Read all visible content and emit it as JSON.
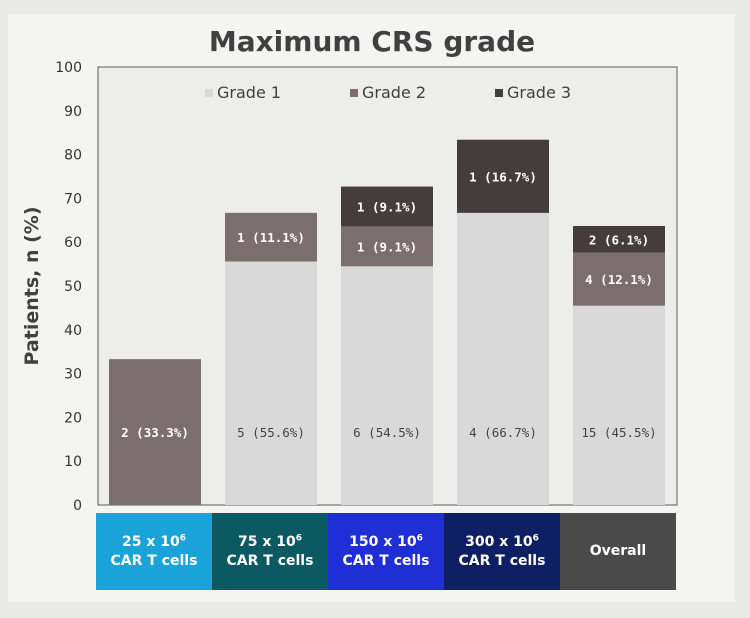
{
  "chart_data": {
    "type": "bar",
    "stacked": true,
    "title": "Maximum CRS grade",
    "ylabel": "Patients, n (%)",
    "xlabel": "",
    "ylim": [
      0,
      100
    ],
    "yticks": [
      0,
      10,
      20,
      30,
      40,
      50,
      60,
      70,
      80,
      90,
      100
    ],
    "grid": false,
    "legend_position": "top-center",
    "categories": [
      {
        "line1": "25 x 10",
        "sup": "6",
        "line2": "CAR T cells",
        "color": "#1aa3d9"
      },
      {
        "line1": "75 x 10",
        "sup": "6",
        "line2": "CAR T cells",
        "color": "#0b5a62"
      },
      {
        "line1": "150 x 10",
        "sup": "6",
        "line2": "CAR T cells",
        "color": "#1e2fd6"
      },
      {
        "line1": "300 x 10",
        "sup": "6",
        "line2": "CAR T cells",
        "color": "#0e1f63"
      },
      {
        "line1": "Overall",
        "sup": "",
        "line2": "",
        "color": "#4a4a4a"
      }
    ],
    "series": [
      {
        "name": "Grade 1",
        "color": "#d9d9d9",
        "label_color": "#444444",
        "values": [
          0,
          55.6,
          54.5,
          66.7,
          45.5
        ],
        "labels": [
          "",
          "5 (55.6%)",
          "6 (54.5%)",
          "4 (66.7%)",
          "15 (45.5%)"
        ]
      },
      {
        "name": "Grade 2",
        "color": "#7a6e6e",
        "label_color": "#ffffff",
        "values": [
          33.3,
          11.1,
          9.1,
          0,
          12.1
        ],
        "labels": [
          "2 (33.3%)",
          "1 (11.1%)",
          "1 (9.1%)",
          "",
          "4 (12.1%)"
        ]
      },
      {
        "name": "Grade 3",
        "color": "#453c3d",
        "label_color": "#ffffff",
        "values": [
          0,
          0,
          9.1,
          16.7,
          6.1
        ],
        "labels": [
          "",
          "",
          "1 (9.1%)",
          "1 (16.7%)",
          "2 (6.1%)"
        ]
      }
    ]
  }
}
